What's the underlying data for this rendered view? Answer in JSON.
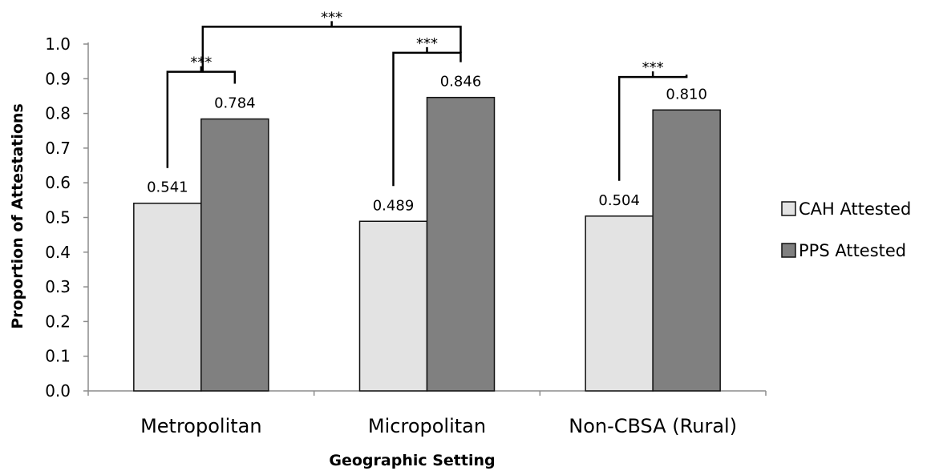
{
  "chart_data": {
    "type": "bar",
    "categories": [
      "Metropolitan",
      "Micropolitan",
      "Non-CBSA (Rural)"
    ],
    "series": [
      {
        "name": "CAH Attested",
        "values": [
          0.541,
          0.489,
          0.504
        ],
        "color": "#e3e3e3"
      },
      {
        "name": "PPS Attested",
        "values": [
          0.784,
          0.846,
          0.81
        ],
        "color": "#808080"
      }
    ],
    "data_labels": [
      [
        "0.541",
        "0.489",
        "0.504"
      ],
      [
        "0.784",
        "0.846",
        "0.810"
      ]
    ],
    "xlabel": "Geographic Setting",
    "ylabel": "Proportion of Attestations",
    "ylim": [
      0,
      1.0
    ],
    "yticks": [
      "0.0",
      "0.1",
      "0.2",
      "0.3",
      "0.4",
      "0.5",
      "0.6",
      "0.7",
      "0.8",
      "0.9",
      "1.0"
    ],
    "grid": false,
    "legend_position": "right",
    "significance": [
      {
        "label": "***",
        "from": "Metropolitan CAH Attested",
        "to": "Metropolitan PPS Attested"
      },
      {
        "label": "***",
        "from": "Micropolitan CAH Attested",
        "to": "Micropolitan PPS Attested"
      },
      {
        "label": "***",
        "from": "Non-CBSA (Rural) CAH Attested",
        "to": "Non-CBSA (Rural) PPS Attested"
      },
      {
        "label": "***",
        "from": "Metropolitan",
        "to": "Micropolitan"
      }
    ]
  }
}
